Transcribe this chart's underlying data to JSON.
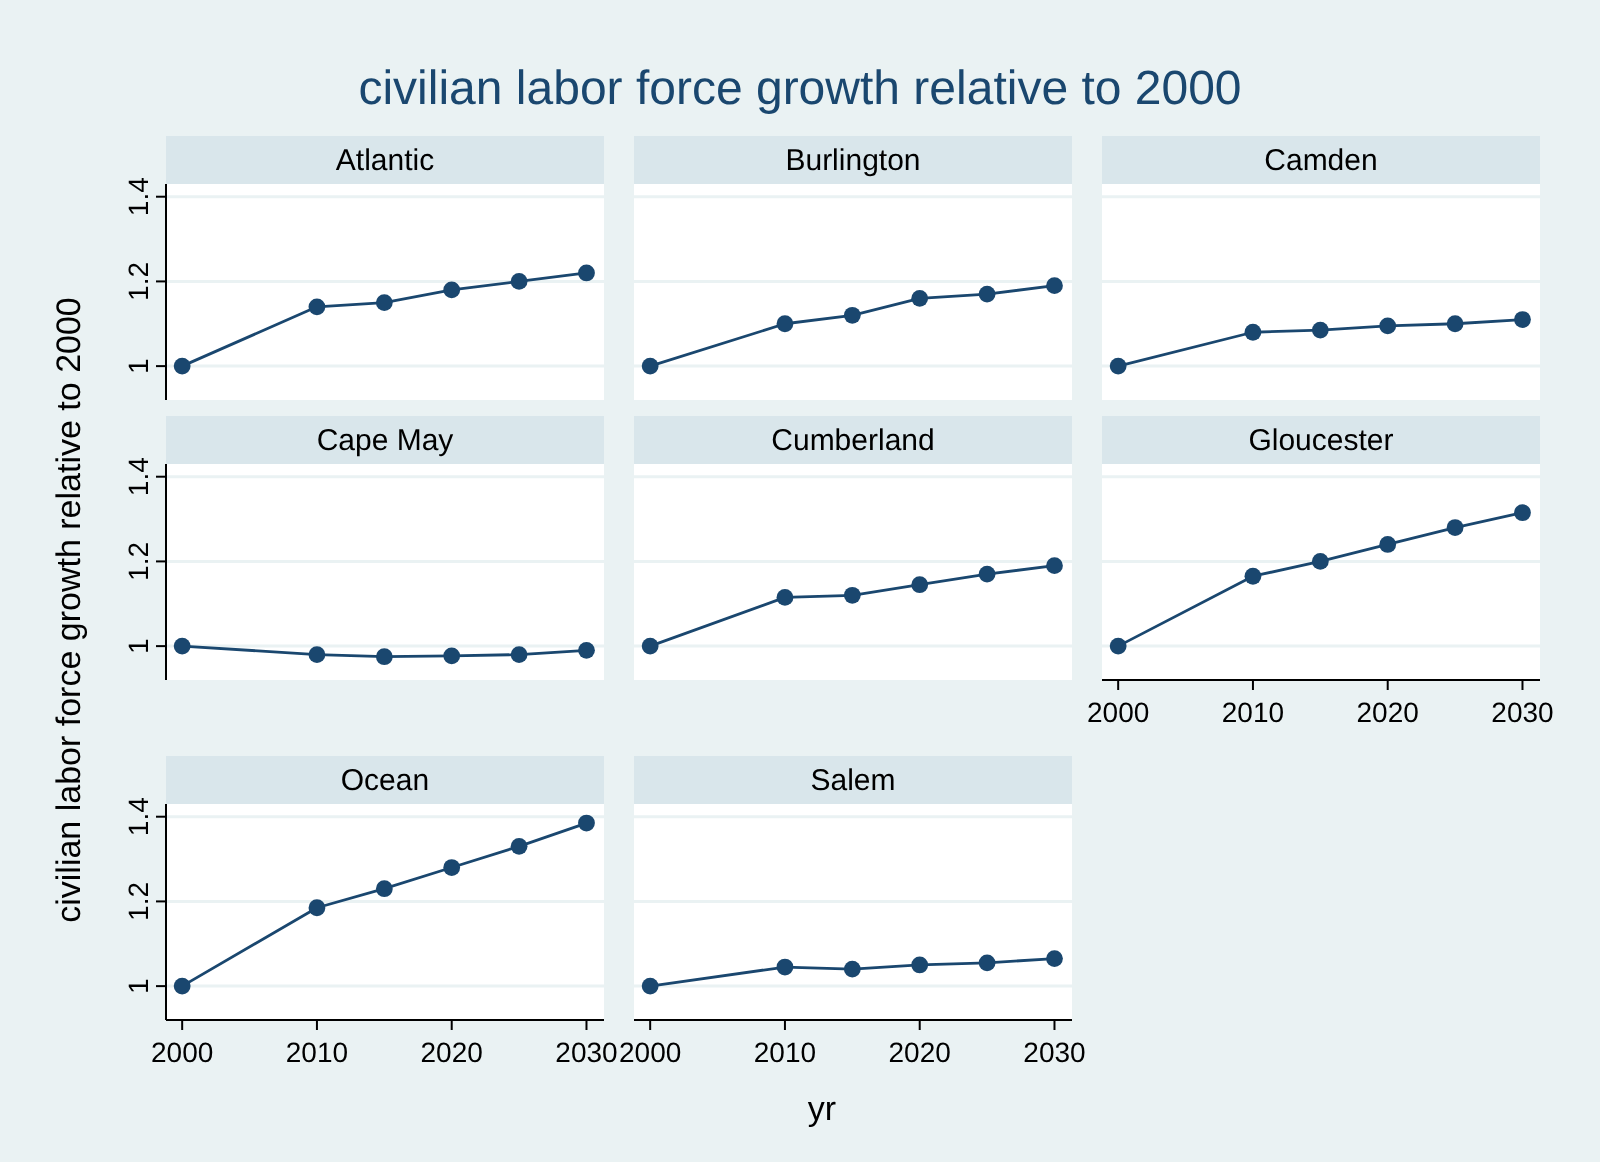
{
  "chart_data": [
    {
      "type": "line",
      "title": "Atlantic",
      "annotations": [
        "civilian labor force growth relative to 2000"
      ],
      "x": [
        2000,
        2010,
        2015,
        2020,
        2025,
        2030
      ],
      "series": [
        {
          "color": "#1a476f",
          "values": [
            1,
            1.14,
            1.15,
            1.18,
            1.2,
            1.22
          ]
        }
      ],
      "xlim": [
        1998.8,
        2031.3
      ],
      "ylim": [
        0.92,
        1.43
      ],
      "yticks": [
        1,
        1.2,
        1.4
      ],
      "grid": "y",
      "marker": "circle",
      "tick_labels": "y"
    },
    {
      "type": "line",
      "title": "Burlington",
      "x": [
        2000,
        2010,
        2015,
        2020,
        2025,
        2030
      ],
      "series": [
        {
          "color": "#1a476f",
          "values": [
            1,
            1.1,
            1.12,
            1.16,
            1.17,
            1.19
          ]
        }
      ],
      "xlim": [
        1998.8,
        2031.3
      ],
      "ylim": [
        0.92,
        1.43
      ],
      "yticks": [
        1,
        1.2,
        1.4
      ],
      "grid": "y",
      "marker": "circle",
      "tick_labels": false
    },
    {
      "type": "line",
      "title": "Camden",
      "x": [
        2000,
        2010,
        2015,
        2020,
        2025,
        2030
      ],
      "series": [
        {
          "color": "#1a476f",
          "values": [
            1,
            1.08,
            1.085,
            1.095,
            1.1,
            1.11
          ]
        }
      ],
      "xlim": [
        1998.8,
        2031.3
      ],
      "ylim": [
        0.92,
        1.43
      ],
      "yticks": [
        1,
        1.2,
        1.4
      ],
      "grid": "y",
      "marker": "circle",
      "tick_labels": false
    },
    {
      "type": "line",
      "title": "Cape May",
      "ylabel": "civilian labor force growth relative to 2000",
      "x": [
        2000,
        2010,
        2015,
        2020,
        2025,
        2030
      ],
      "series": [
        {
          "color": "#1a476f",
          "values": [
            1,
            0.98,
            0.975,
            0.977,
            0.98,
            0.99
          ]
        }
      ],
      "xlim": [
        1998.8,
        2031.3
      ],
      "ylim": [
        0.92,
        1.43
      ],
      "yticks": [
        1,
        1.2,
        1.4
      ],
      "grid": "y",
      "marker": "circle",
      "tick_labels": "y"
    },
    {
      "type": "line",
      "title": "Cumberland",
      "x": [
        2000,
        2010,
        2015,
        2020,
        2025,
        2030
      ],
      "series": [
        {
          "color": "#1a476f",
          "values": [
            1,
            1.115,
            1.12,
            1.145,
            1.17,
            1.19
          ]
        }
      ],
      "xlim": [
        1998.8,
        2031.3
      ],
      "ylim": [
        0.92,
        1.43
      ],
      "yticks": [
        1,
        1.2,
        1.4
      ],
      "grid": "y",
      "marker": "circle",
      "tick_labels": false
    },
    {
      "type": "line",
      "title": "Gloucester",
      "x": [
        2000,
        2010,
        2015,
        2020,
        2025,
        2030
      ],
      "series": [
        {
          "color": "#1a476f",
          "values": [
            1,
            1.165,
            1.2,
            1.24,
            1.28,
            1.315
          ]
        }
      ],
      "xlim": [
        1998.8,
        2031.3
      ],
      "ylim": [
        0.92,
        1.43
      ],
      "xticks": [
        2000,
        2010,
        2020,
        2030
      ],
      "yticks": [
        1,
        1.2,
        1.4
      ],
      "grid": "y",
      "marker": "circle",
      "tick_labels": "x"
    },
    {
      "type": "line",
      "title": "Ocean",
      "xlabel": "yr",
      "x": [
        2000,
        2010,
        2015,
        2020,
        2025,
        2030
      ],
      "series": [
        {
          "color": "#1a476f",
          "values": [
            1,
            1.185,
            1.23,
            1.28,
            1.33,
            1.385
          ]
        }
      ],
      "xlim": [
        1998.8,
        2031.3
      ],
      "ylim": [
        0.92,
        1.43
      ],
      "xticks": [
        2000,
        2010,
        2020,
        2030
      ],
      "yticks": [
        1,
        1.2,
        1.4
      ],
      "grid": "y",
      "marker": "circle"
    },
    {
      "type": "line",
      "title": "Salem",
      "x": [
        2000,
        2010,
        2015,
        2020,
        2025,
        2030
      ],
      "series": [
        {
          "color": "#1a476f",
          "values": [
            1,
            1.045,
            1.04,
            1.05,
            1.055,
            1.065
          ]
        }
      ],
      "xlim": [
        1998.8,
        2031.3
      ],
      "ylim": [
        0.92,
        1.43
      ],
      "xticks": [
        2000,
        2010,
        2020,
        2030
      ],
      "yticks": [
        1,
        1.2,
        1.4
      ],
      "grid": "y",
      "marker": "circle",
      "tick_labels": "x"
    }
  ]
}
